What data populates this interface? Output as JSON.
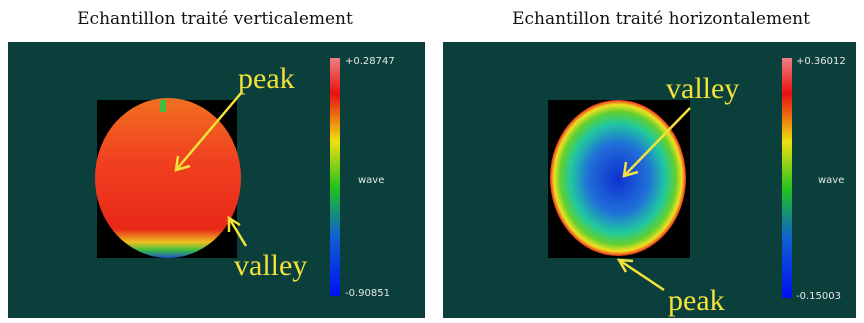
{
  "panels": [
    {
      "title": "Echantillon traité verticalement",
      "annotations": [
        "peak",
        "valley"
      ],
      "colorbar": {
        "max": "+0.28747",
        "unit": "wave",
        "min": "-0.90851"
      }
    },
    {
      "title": "Echantillon traité horizontalement",
      "annotations": [
        "valley",
        "peak"
      ],
      "colorbar": {
        "max": "+0.36012",
        "unit": "wave",
        "min": "-0.15003"
      }
    }
  ]
}
